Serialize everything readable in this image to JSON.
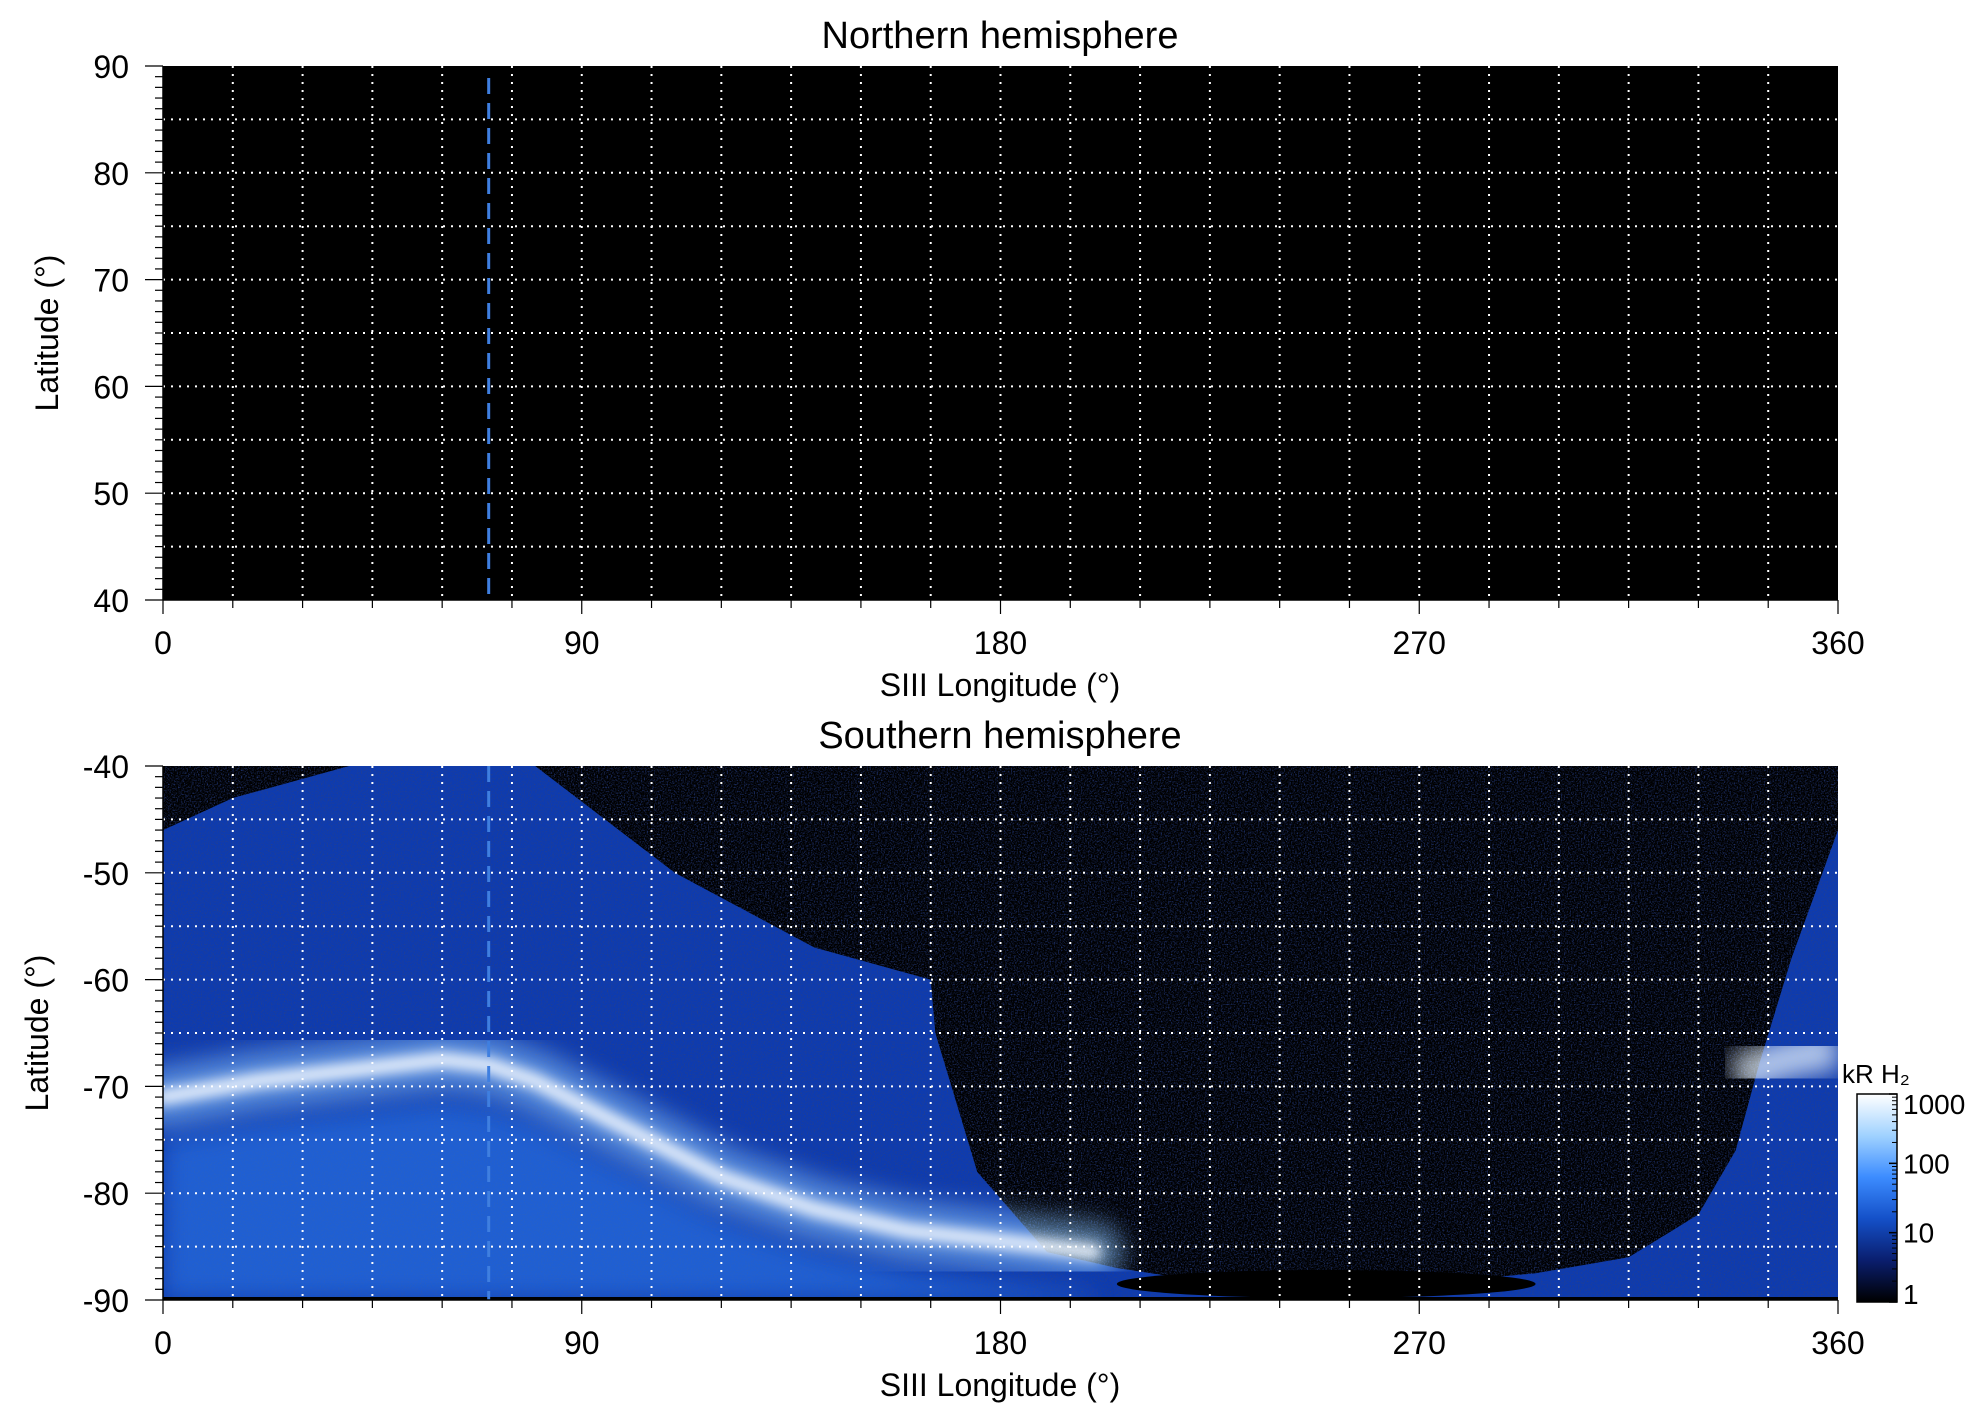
{
  "chart_data": [
    {
      "type": "heatmap",
      "title": "Northern hemisphere",
      "xlabel": "SIII Longitude (°)",
      "ylabel": "Latitude (°)",
      "xlim": [
        0,
        360
      ],
      "ylim": [
        40,
        90
      ],
      "xticks": [
        "0",
        "90",
        "180",
        "270",
        "360"
      ],
      "yticks": [
        "40",
        "50",
        "60",
        "70",
        "80",
        "90"
      ],
      "grid": true,
      "grid_step_deg": {
        "x": 15,
        "y": 5
      },
      "marker_line_longitude": 70,
      "emission": "none visible",
      "colors": {
        "background": "#000000",
        "grid": "#ffffff",
        "marker": "#3f7fe0"
      }
    },
    {
      "type": "heatmap",
      "title": "Southern hemisphere",
      "xlabel": "SIII Longitude (°)",
      "ylabel": "Latitude (°)",
      "xlim": [
        0,
        360
      ],
      "ylim": [
        -90,
        -40
      ],
      "xticks": [
        "0",
        "90",
        "180",
        "270",
        "360"
      ],
      "yticks": [
        "-40",
        "-50",
        "-60",
        "-70",
        "-80",
        "-90"
      ],
      "grid": true,
      "grid_step_deg": {
        "x": 15,
        "y": 5
      },
      "marker_line_longitude": 70,
      "main_oval": {
        "longitude": [
          0,
          20,
          40,
          60,
          70,
          80,
          100,
          120,
          140,
          160,
          180,
          200
        ],
        "latitude": [
          -71,
          -69.5,
          -68.5,
          -67.5,
          -68,
          -69.5,
          -74,
          -78.5,
          -81.5,
          -83.5,
          -84.5,
          -85.5
        ]
      },
      "coverage_boundary": {
        "longitude": [
          0,
          15,
          40,
          80,
          110,
          140,
          165,
          166,
          175,
          190,
          205,
          220,
          245,
          270,
          295,
          315,
          330,
          338,
          343,
          350,
          360
        ],
        "latitude": [
          -46,
          -43,
          -40,
          -40,
          -50,
          -57,
          -60,
          -65,
          -78,
          -85.5,
          -87,
          -88,
          -88.5,
          -88.5,
          -87.5,
          -86,
          -82,
          -76,
          -68,
          -58,
          -46
        ]
      },
      "colorbar": {
        "label": "kR H₂",
        "scale": "log",
        "range": [
          1,
          1000
        ],
        "tick_labels": [
          "1",
          "10",
          "100",
          "1000"
        ],
        "colors": [
          "#000000",
          "#0a1e6e",
          "#1450c8",
          "#3c8cff",
          "#a0d2ff",
          "#ffffff"
        ]
      }
    }
  ]
}
